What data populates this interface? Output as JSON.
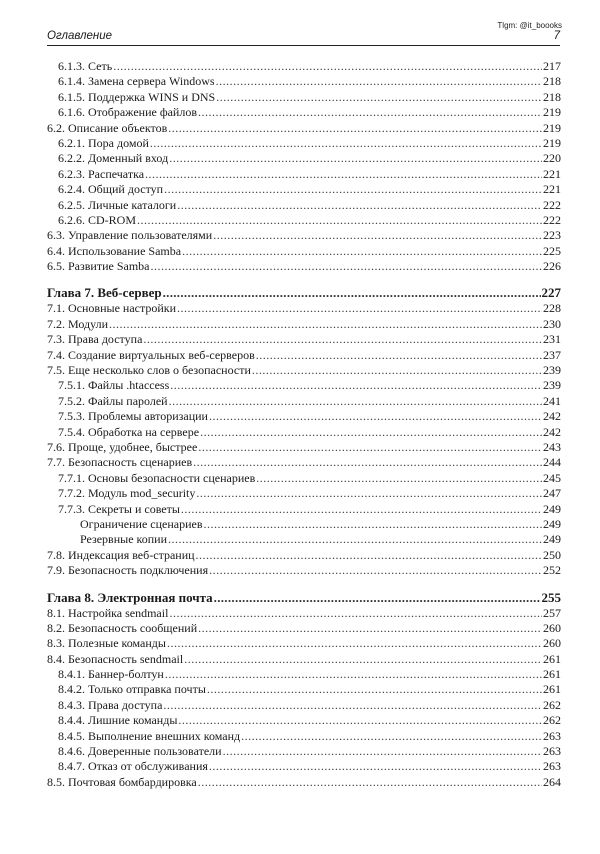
{
  "watermark": "Tlgm: @it_boooks",
  "header": {
    "title": "Оглавление",
    "page_number": "7"
  },
  "entries": [
    {
      "level": 2,
      "text": "6.1.3. Сеть",
      "page": "217"
    },
    {
      "level": 2,
      "text": "6.1.4. Замена сервера Windows",
      "page": "218"
    },
    {
      "level": 2,
      "text": "6.1.5. Поддержка WINS и DNS",
      "page": "218"
    },
    {
      "level": 2,
      "text": "6.1.6. Отображение файлов",
      "page": "219"
    },
    {
      "level": 1,
      "text": "6.2. Описание объектов",
      "page": "219"
    },
    {
      "level": 2,
      "text": "6.2.1. Пора домой",
      "page": "219"
    },
    {
      "level": 2,
      "text": "6.2.2. Доменный вход",
      "page": "220"
    },
    {
      "level": 2,
      "text": "6.2.3. Распечатка",
      "page": "221"
    },
    {
      "level": 2,
      "text": "6.2.4. Общий доступ",
      "page": "221"
    },
    {
      "level": 2,
      "text": "6.2.5. Личные каталоги",
      "page": "222"
    },
    {
      "level": 2,
      "text": "6.2.6. CD-ROM",
      "page": "222"
    },
    {
      "level": 1,
      "text": "6.3. Управление пользователями",
      "page": "223"
    },
    {
      "level": 1,
      "text": "6.4. Использование Samba",
      "page": "225"
    },
    {
      "level": 1,
      "text": "6.5. Развитие Samba",
      "page": "226"
    },
    {
      "level": 0,
      "text": "Глава 7. Веб-сервер",
      "page": "227"
    },
    {
      "level": 1,
      "text": "7.1. Основные настройки",
      "page": "228"
    },
    {
      "level": 1,
      "text": "7.2. Модули",
      "page": "230"
    },
    {
      "level": 1,
      "text": "7.3. Права доступа",
      "page": "231"
    },
    {
      "level": 1,
      "text": "7.4. Создание виртуальных веб-серверов",
      "page": "237"
    },
    {
      "level": 1,
      "text": "7.5. Еще несколько слов о безопасности",
      "page": "239"
    },
    {
      "level": 2,
      "text": "7.5.1. Файлы .htaccess",
      "page": "239"
    },
    {
      "level": 2,
      "text": "7.5.2. Файлы паролей",
      "page": "241"
    },
    {
      "level": 2,
      "text": "7.5.3. Проблемы авторизации",
      "page": "242"
    },
    {
      "level": 2,
      "text": "7.5.4. Обработка на сервере",
      "page": "242"
    },
    {
      "level": 1,
      "text": "7.6. Проще, удобнее, быстрее",
      "page": "243"
    },
    {
      "level": 1,
      "text": "7.7. Безопасность сценариев",
      "page": "244"
    },
    {
      "level": 2,
      "text": "7.7.1. Основы безопасности сценариев",
      "page": "245"
    },
    {
      "level": 2,
      "text": "7.7.2. Модуль mod_security",
      "page": "247"
    },
    {
      "level": 2,
      "text": "7.7.3. Секреты и советы",
      "page": "249"
    },
    {
      "level": 3,
      "text": "Ограничение сценариев",
      "page": "249"
    },
    {
      "level": 3,
      "text": "Резервные копии",
      "page": "249"
    },
    {
      "level": 1,
      "text": "7.8. Индексация веб-страниц",
      "page": "250"
    },
    {
      "level": 1,
      "text": "7.9. Безопасность подключения",
      "page": "252"
    },
    {
      "level": 0,
      "text": "Глава 8. Электронная почта",
      "page": "255"
    },
    {
      "level": 1,
      "text": "8.1. Настройка sendmail",
      "page": "257"
    },
    {
      "level": 1,
      "text": "8.2. Безопасность сообщений",
      "page": "260"
    },
    {
      "level": 1,
      "text": "8.3. Полезные команды",
      "page": "260"
    },
    {
      "level": 1,
      "text": "8.4. Безопасность sendmail",
      "page": "261"
    },
    {
      "level": 2,
      "text": "8.4.1. Баннер-болтун",
      "page": "261"
    },
    {
      "level": 2,
      "text": "8.4.2. Только отправка почты",
      "page": "261"
    },
    {
      "level": 2,
      "text": "8.4.3. Права доступа",
      "page": "262"
    },
    {
      "level": 2,
      "text": "8.4.4. Лишние команды",
      "page": "262"
    },
    {
      "level": 2,
      "text": "8.4.5. Выполнение внешних команд",
      "page": "263"
    },
    {
      "level": 2,
      "text": "8.4.6. Доверенные пользователи",
      "page": "263"
    },
    {
      "level": 2,
      "text": "8.4.7. Отказ от обслуживания",
      "page": "263"
    },
    {
      "level": 1,
      "text": "8.5. Почтовая бомбардировка",
      "page": "264"
    }
  ]
}
